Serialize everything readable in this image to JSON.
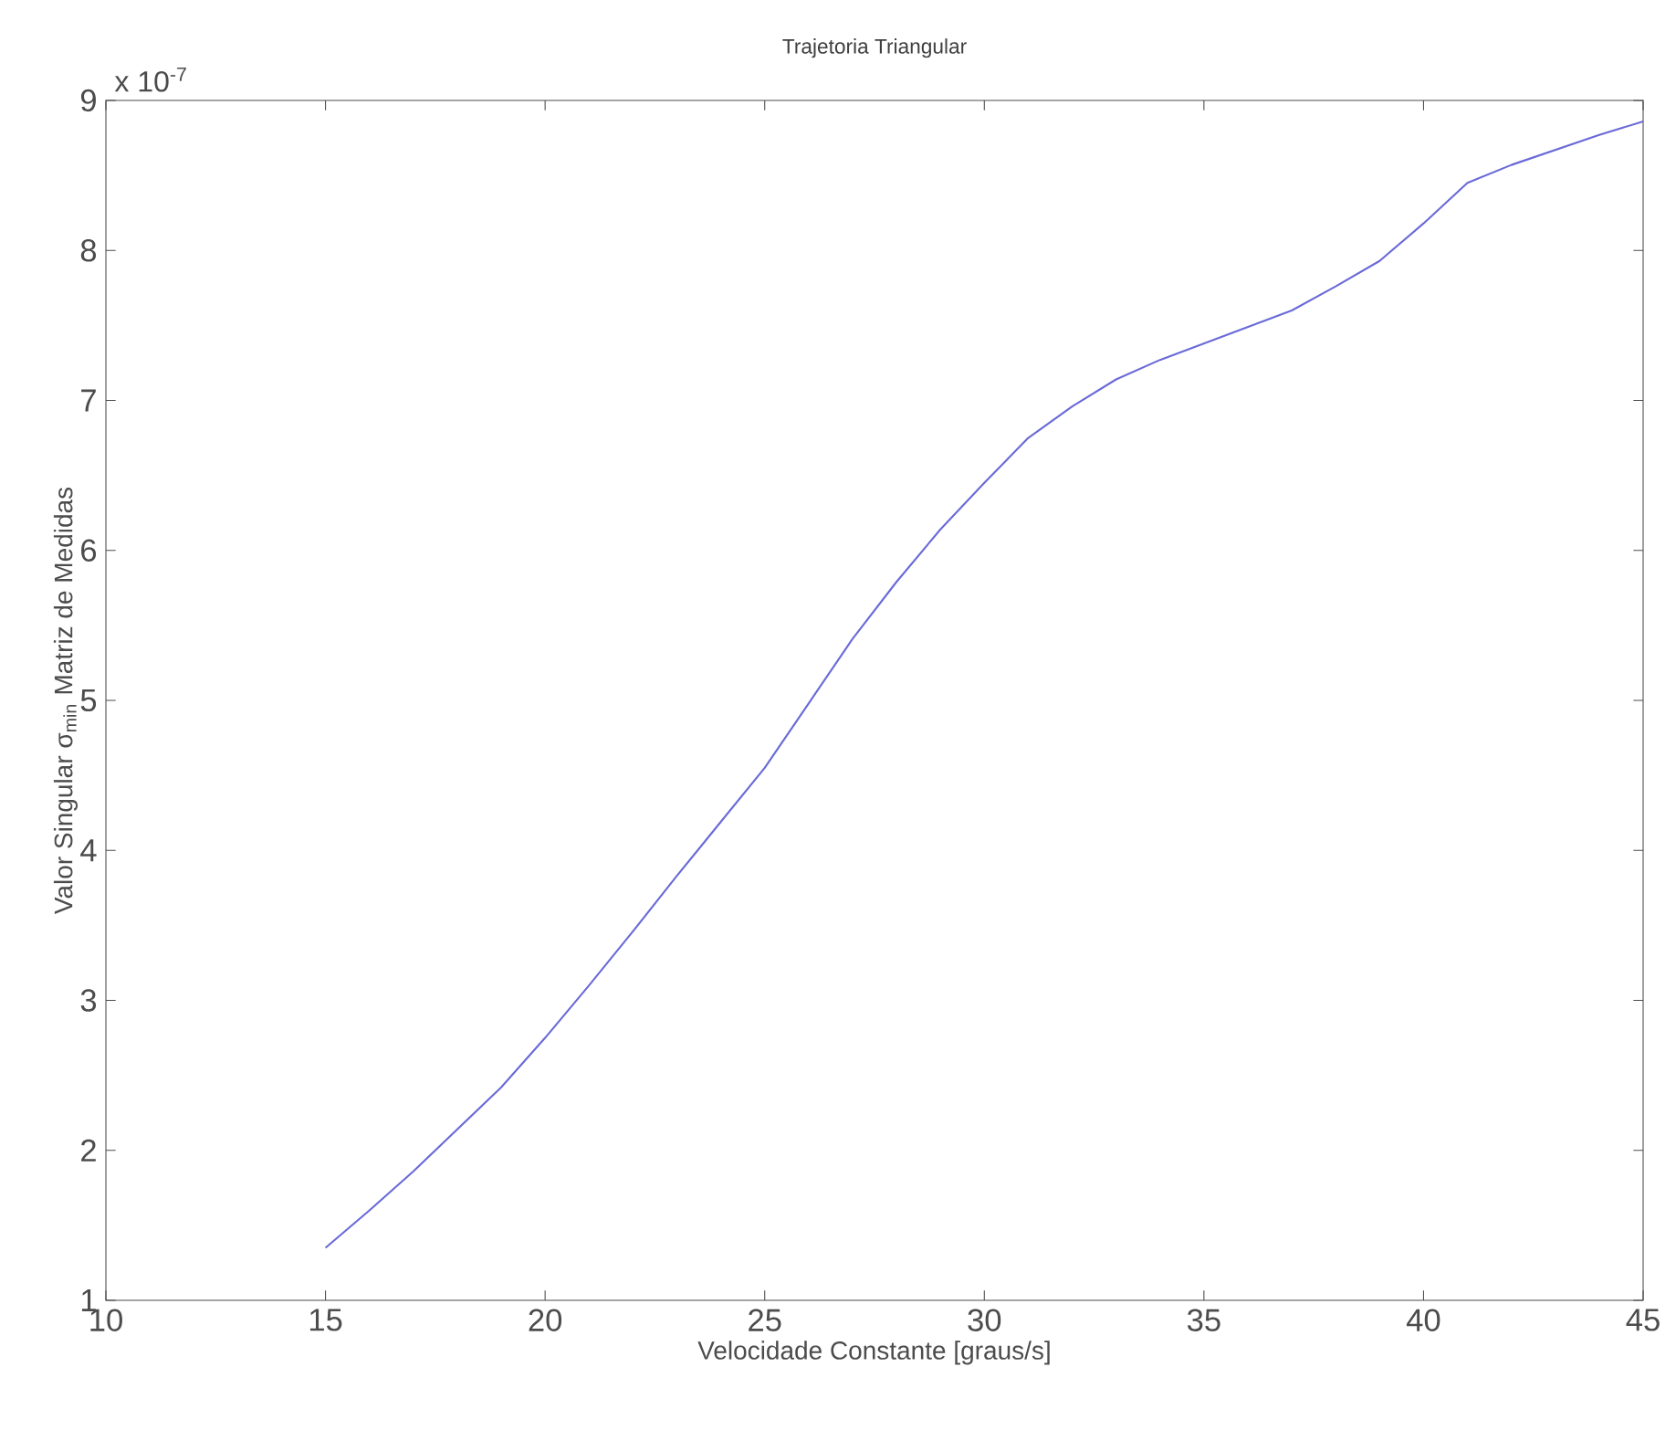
{
  "chart_data": {
    "type": "line",
    "title": "Trajetoria Triangular",
    "xlabel": "Velocidade Constante [graus/s]",
    "ylabel": "Valor Singular   σ$_{min}$   Matriz de Medidas",
    "annotations": [
      "x 10$^{-7}$"
    ],
    "series": [
      {
        "color": "#6a6ad8",
        "x": [
          15,
          16,
          17,
          18,
          19,
          20,
          21,
          22,
          23,
          24,
          25,
          26,
          27,
          28,
          29,
          30,
          31,
          32,
          33,
          34,
          35,
          36,
          37,
          38,
          39,
          40,
          41,
          42,
          43,
          44,
          45
        ],
        "values": [
          1.35,
          1.6,
          1.86,
          2.14,
          2.42,
          2.75,
          3.1,
          3.46,
          3.83,
          4.19,
          4.55,
          4.98,
          5.41,
          5.79,
          6.14,
          6.45,
          6.75,
          6.96,
          7.14,
          7.27,
          7.38,
          7.49,
          7.6,
          7.76,
          7.93,
          8.18,
          8.45,
          8.57,
          8.67,
          8.77,
          8.86
        ]
      }
    ],
    "xlim": [
      10,
      45
    ],
    "ylim": [
      1,
      9
    ],
    "xticks": [
      10,
      15,
      20,
      25,
      30,
      35,
      40,
      45
    ],
    "yticks": [
      1,
      2,
      3,
      4,
      5,
      6,
      7,
      8,
      9
    ],
    "grid": false,
    "marker": "none",
    "line_style": "solid"
  }
}
